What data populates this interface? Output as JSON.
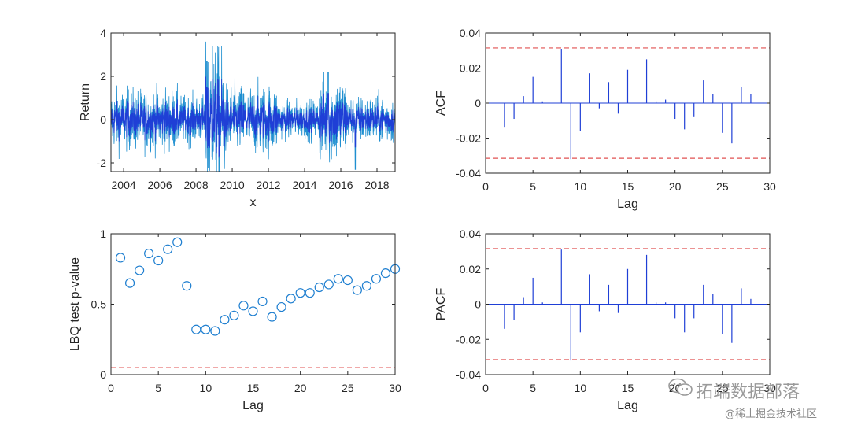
{
  "chart_data": [
    {
      "id": "returns",
      "type": "line",
      "xlabel": "x",
      "ylabel": "Return",
      "xlim": [
        2003.3,
        2019.0
      ],
      "ylim": [
        -2.4,
        4
      ],
      "x_tick_labels": [
        "2004",
        "2006",
        "2008",
        "2010",
        "2012",
        "2014",
        "2016",
        "2018"
      ],
      "x_ticks": [
        2004,
        2006,
        2008,
        2010,
        2012,
        2014,
        2016,
        2018
      ],
      "y_ticks": [
        -2,
        0,
        2,
        4
      ],
      "y_tick_labels": [
        "-2",
        "0",
        "2",
        "4"
      ],
      "volatility_profile": [
        {
          "from": 2003.3,
          "to": 2007.0,
          "amp": 0.7
        },
        {
          "from": 2007.0,
          "to": 2008.5,
          "amp": 0.55
        },
        {
          "from": 2008.5,
          "to": 2009.6,
          "amp": 1.6
        },
        {
          "from": 2009.6,
          "to": 2012.5,
          "amp": 0.8
        },
        {
          "from": 2012.5,
          "to": 2014.8,
          "amp": 0.45
        },
        {
          "from": 2014.8,
          "to": 2016.3,
          "amp": 1.0
        },
        {
          "from": 2016.3,
          "to": 2019.0,
          "amp": 0.55
        }
      ],
      "colors": {
        "line_dark": "#1f3fd6",
        "line_light": "#1f8fd0"
      }
    },
    {
      "id": "acf",
      "type": "stem",
      "xlabel": "Lag",
      "ylabel": "ACF",
      "xlim": [
        0,
        30
      ],
      "ylim": [
        -0.04,
        0.04
      ],
      "x_ticks": [
        0,
        5,
        10,
        15,
        20,
        25,
        30
      ],
      "y_ticks": [
        -0.04,
        -0.02,
        0,
        0.02,
        0.04
      ],
      "y_tick_labels": [
        "-0.04",
        "-0.02",
        "0",
        "0.02",
        "0.04"
      ],
      "confidence_bound": 0.0315,
      "lags": [
        2,
        3,
        4,
        5,
        6,
        7,
        8,
        9,
        10,
        11,
        12,
        13,
        14,
        15,
        16,
        17,
        18,
        19,
        20,
        21,
        22,
        23,
        24,
        25,
        26,
        27,
        28,
        29
      ],
      "values": [
        -0.014,
        -0.009,
        0.004,
        0.015,
        0.001,
        0.0,
        0.031,
        -0.032,
        -0.016,
        0.017,
        -0.003,
        0.012,
        -0.006,
        0.019,
        0.0,
        0.025,
        0.001,
        0.002,
        -0.009,
        -0.015,
        -0.008,
        0.013,
        0.005,
        -0.017,
        -0.023,
        0.009,
        0.005,
        0.0
      ],
      "colors": {
        "stem": "#1f3fd6",
        "bound": "#e05050"
      }
    },
    {
      "id": "lbq",
      "type": "scatter",
      "xlabel": "Lag",
      "ylabel": "LBQ test p-value",
      "xlim": [
        0,
        30
      ],
      "ylim": [
        0,
        1
      ],
      "x_ticks": [
        0,
        5,
        10,
        15,
        20,
        25,
        30
      ],
      "y_ticks": [
        0,
        0.5,
        1
      ],
      "y_tick_labels": [
        "0",
        "0.5",
        "1"
      ],
      "significance_level": 0.05,
      "x": [
        1,
        2,
        3,
        4,
        5,
        6,
        7,
        8,
        9,
        10,
        11,
        12,
        13,
        14,
        15,
        16,
        17,
        18,
        19,
        20,
        21,
        22,
        23,
        24,
        25,
        26,
        27,
        28,
        29,
        30
      ],
      "y": [
        0.83,
        0.65,
        0.74,
        0.86,
        0.81,
        0.89,
        0.94,
        0.63,
        0.32,
        0.32,
        0.31,
        0.39,
        0.42,
        0.49,
        0.45,
        0.52,
        0.41,
        0.48,
        0.54,
        0.58,
        0.58,
        0.62,
        0.64,
        0.68,
        0.67,
        0.6,
        0.63,
        0.68,
        0.72,
        0.75
      ],
      "colors": {
        "marker": "#1f7fd0",
        "bound": "#e05050"
      }
    },
    {
      "id": "pacf",
      "type": "stem",
      "xlabel": "Lag",
      "ylabel": "PACF",
      "xlim": [
        0,
        30
      ],
      "ylim": [
        -0.04,
        0.04
      ],
      "x_ticks": [
        0,
        5,
        10,
        15,
        20,
        25,
        30
      ],
      "y_ticks": [
        -0.04,
        -0.02,
        0,
        0.02,
        0.04
      ],
      "y_tick_labels": [
        "-0.04",
        "-0.02",
        "0",
        "0.02",
        "0.04"
      ],
      "confidence_bound": 0.0315,
      "lags": [
        2,
        3,
        4,
        5,
        6,
        7,
        8,
        9,
        10,
        11,
        12,
        13,
        14,
        15,
        16,
        17,
        18,
        19,
        20,
        21,
        22,
        23,
        24,
        25,
        26,
        27,
        28,
        29
      ],
      "values": [
        -0.014,
        -0.009,
        0.004,
        0.015,
        0.001,
        0.0,
        0.031,
        -0.032,
        -0.016,
        0.017,
        -0.004,
        0.011,
        -0.005,
        0.02,
        0.0,
        0.028,
        0.001,
        0.001,
        -0.008,
        -0.016,
        -0.008,
        0.011,
        0.006,
        -0.017,
        -0.022,
        0.009,
        0.003,
        0.0
      ],
      "colors": {
        "stem": "#1f3fd6",
        "bound": "#e05050"
      }
    }
  ],
  "watermark": {
    "title": "拓端数据部落",
    "subtitle": "@稀土掘金技术社区"
  }
}
